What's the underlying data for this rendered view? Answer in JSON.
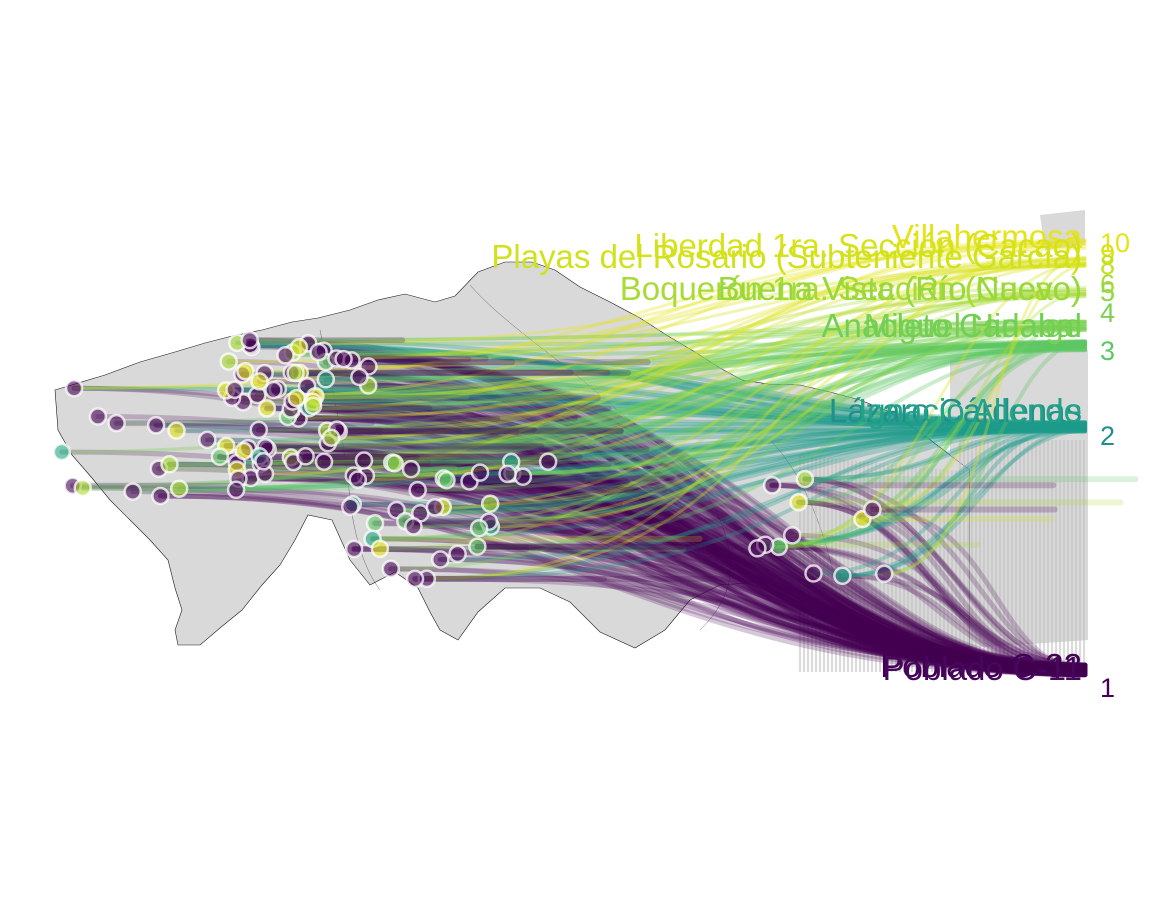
{
  "map": {
    "palette": {
      "r1": "#440154",
      "r2": "#21908C",
      "r3": "#5DC863",
      "r4": "#7AD151",
      "r5": "#8FD744",
      "r6": "#A8DB34",
      "r8": "#C2DF23",
      "r9": "#D8E219",
      "r10": "#E5E419",
      "land": "#D9D9D9",
      "border": "#1a1a1a",
      "area": "#BEBEBE"
    },
    "rank_labels": [
      "1",
      "2",
      "3",
      "4",
      "5",
      "6",
      "8",
      "9",
      "10"
    ],
    "place_labels": {
      "rank10": "Villahermosa",
      "rank9a": "Liberdad 1ra. Sección (Cacao)",
      "rank9b": "Playas del Rosario (Subteniente García)",
      "rank6": "Boquerón 1ra. Sección (Cacao)",
      "rank5": "Buena Vista (Río Nuevo)",
      "rank3a": "Miguel Hidalgo",
      "rank3b": "Anacleto Canabal",
      "rank2a": "Lázaro Cárdenas",
      "rank2b": "Ignacio Allende",
      "rank1a": "Poblado C-32",
      "rank1b": "Poblado C-11"
    }
  }
}
